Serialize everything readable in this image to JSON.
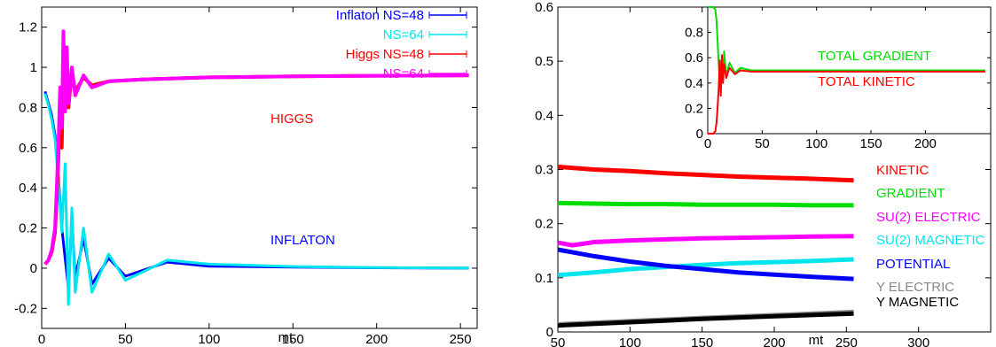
{
  "chart_data": [
    {
      "type": "line",
      "xlabel": "mt",
      "ylabel": "",
      "xlim": [
        0,
        260
      ],
      "ylim": [
        -0.3,
        1.3
      ],
      "xticks": [
        0,
        50,
        100,
        150,
        200,
        250
      ],
      "yticks": [
        -0.2,
        0,
        0.2,
        0.4,
        0.6,
        0.8,
        1,
        1.2
      ],
      "xtick_labels": [
        "0",
        "50",
        "100",
        "150",
        "200",
        "250"
      ],
      "ytick_labels": [
        "-0.2",
        "0",
        "0.2",
        "0.4",
        "0.6",
        "0.8",
        "1",
        "1.2"
      ],
      "legend": {
        "placement": "top-right",
        "groups": [
          {
            "label": "Inflaton",
            "entries": [
              {
                "label": "NS=48",
                "color": "#0000ff"
              },
              {
                "label": "NS=64",
                "color": "#00e5ee"
              }
            ],
            "color": "#0000ff"
          },
          {
            "label": "Higgs",
            "entries": [
              {
                "label": "NS=48",
                "color": "#ff0000"
              },
              {
                "label": "NS=64",
                "color": "#ff00ff"
              }
            ],
            "color": "#ff0000"
          }
        ]
      },
      "annotations": [
        {
          "text": "HIGGS",
          "color": "#ff0000",
          "x": 125,
          "y": 0.86
        },
        {
          "text": "INFLATON",
          "color": "#0000ff",
          "x": 145,
          "y": 0.08
        }
      ],
      "series": [
        {
          "name": "Inflaton NS=48",
          "color": "#0000ff",
          "x": [
            2,
            4,
            6,
            8,
            10,
            12,
            14,
            16,
            18,
            20,
            25,
            30,
            40,
            50,
            75,
            100,
            150,
            200,
            255
          ],
          "y": [
            0.88,
            0.82,
            0.76,
            0.66,
            0.45,
            0.2,
            0.05,
            -0.1,
            0.25,
            -0.05,
            0.15,
            -0.08,
            0.05,
            -0.04,
            0.03,
            0.01,
            0.005,
            0.002,
            0.0
          ]
        },
        {
          "name": "Inflaton NS=64",
          "color": "#00e5ee",
          "x": [
            2,
            4,
            6,
            8,
            10,
            12,
            14,
            16,
            18,
            20,
            25,
            30,
            40,
            50,
            75,
            100,
            150,
            200,
            255
          ],
          "y": [
            0.87,
            0.81,
            0.74,
            0.64,
            0.43,
            0.18,
            0.52,
            -0.18,
            0.3,
            -0.12,
            0.2,
            -0.12,
            0.07,
            -0.06,
            0.04,
            0.02,
            0.008,
            0.003,
            0.0
          ]
        },
        {
          "name": "Higgs NS=48",
          "color": "#ff0000",
          "x": [
            2,
            4,
            6,
            8,
            9,
            10,
            11,
            12,
            13,
            14,
            15,
            16,
            18,
            20,
            25,
            30,
            40,
            60,
            100,
            150,
            200,
            255
          ],
          "y": [
            0.02,
            0.04,
            0.08,
            0.18,
            0.35,
            0.55,
            0.85,
            0.6,
            1.1,
            0.85,
            1.05,
            0.8,
            0.98,
            0.88,
            0.95,
            0.91,
            0.93,
            0.94,
            0.95,
            0.955,
            0.958,
            0.96
          ]
        },
        {
          "name": "Higgs NS=64",
          "color": "#ff00ff",
          "x": [
            2,
            4,
            6,
            8,
            9,
            10,
            11,
            12,
            13,
            14,
            15,
            16,
            18,
            20,
            25,
            30,
            40,
            60,
            100,
            150,
            200,
            255
          ],
          "y": [
            0.02,
            0.04,
            0.09,
            0.2,
            0.4,
            0.62,
            0.9,
            0.7,
            1.18,
            0.78,
            1.1,
            0.82,
            1.0,
            0.86,
            0.96,
            0.9,
            0.93,
            0.94,
            0.95,
            0.955,
            0.958,
            0.96
          ]
        }
      ]
    },
    {
      "type": "line",
      "xlabel": "mt",
      "ylabel": "",
      "xlim": [
        50,
        350
      ],
      "ylim": [
        0,
        0.6
      ],
      "xticks": [
        50,
        100,
        150,
        200,
        250,
        300
      ],
      "yticks": [
        0,
        0.1,
        0.2,
        0.3,
        0.4,
        0.5,
        0.6
      ],
      "xtick_labels": [
        "50",
        "100",
        "150",
        "200",
        "250",
        "300"
      ],
      "ytick_labels": [
        "0",
        "0.1",
        "0.2",
        "0.3",
        "0.4",
        "0.5",
        "0.6"
      ],
      "series": [
        {
          "name": "KINETIC",
          "color": "#ff0000",
          "x": [
            50,
            75,
            100,
            125,
            150,
            175,
            200,
            225,
            255
          ],
          "y": [
            0.305,
            0.3,
            0.297,
            0.293,
            0.29,
            0.287,
            0.285,
            0.283,
            0.28
          ]
        },
        {
          "name": "GRADIENT",
          "color": "#00dd00",
          "x": [
            50,
            75,
            100,
            125,
            150,
            175,
            200,
            225,
            255
          ],
          "y": [
            0.238,
            0.237,
            0.236,
            0.236,
            0.235,
            0.235,
            0.235,
            0.234,
            0.234
          ]
        },
        {
          "name": "SU(2) ELECTRIC",
          "color": "#ff00ff",
          "x": [
            50,
            60,
            75,
            100,
            125,
            150,
            175,
            200,
            225,
            255
          ],
          "y": [
            0.165,
            0.16,
            0.166,
            0.169,
            0.171,
            0.173,
            0.174,
            0.175,
            0.176,
            0.177
          ]
        },
        {
          "name": "SU(2) MAGNETIC",
          "color": "#00e5ee",
          "x": [
            50,
            75,
            100,
            125,
            150,
            175,
            200,
            225,
            255
          ],
          "y": [
            0.105,
            0.11,
            0.116,
            0.12,
            0.124,
            0.127,
            0.129,
            0.131,
            0.134
          ]
        },
        {
          "name": "POTENTIAL",
          "color": "#0000ff",
          "x": [
            50,
            75,
            100,
            125,
            150,
            175,
            200,
            225,
            255
          ],
          "y": [
            0.152,
            0.14,
            0.13,
            0.122,
            0.116,
            0.11,
            0.106,
            0.102,
            0.098
          ]
        },
        {
          "name": "Y ELECTRIC",
          "color": "#888888",
          "x": [
            50,
            100,
            150,
            200,
            255
          ],
          "y": [
            0.014,
            0.02,
            0.026,
            0.031,
            0.037
          ]
        },
        {
          "name": "Y MAGNETIC",
          "color": "#000000",
          "x": [
            50,
            100,
            150,
            200,
            255
          ],
          "y": [
            0.012,
            0.018,
            0.024,
            0.029,
            0.034
          ]
        }
      ],
      "inset": {
        "xlim": [
          0,
          260
        ],
        "ylim": [
          0,
          1.0
        ],
        "xticks": [
          0,
          50,
          100,
          150,
          200
        ],
        "yticks": [
          0,
          0.2,
          0.4,
          0.6,
          0.8
        ],
        "xtick_labels": [
          "0",
          "50",
          "100",
          "150",
          "200"
        ],
        "ytick_labels": [
          "0",
          "0.2",
          "0.4",
          "0.6",
          "0.8"
        ],
        "series": [
          {
            "name": "TOTAL GRADIENT",
            "color": "#00dd00",
            "x": [
              0,
              3,
              5,
              7,
              8,
              9,
              10,
              11,
              12,
              13,
              14,
              15,
              17,
              20,
              25,
              30,
              40,
              60,
              100,
              150,
              200,
              255
            ],
            "y": [
              1.0,
              1.0,
              1.0,
              0.98,
              0.9,
              0.75,
              0.55,
              0.42,
              0.35,
              0.6,
              0.42,
              0.65,
              0.45,
              0.56,
              0.48,
              0.52,
              0.5,
              0.5,
              0.5,
              0.5,
              0.5,
              0.5
            ]
          },
          {
            "name": "TOTAL KINETIC",
            "color": "#ff0000",
            "x": [
              0,
              3,
              5,
              7,
              8,
              9,
              10,
              11,
              12,
              13,
              14,
              15,
              17,
              20,
              25,
              30,
              40,
              60,
              100,
              150,
              200,
              255
            ],
            "y": [
              0.0,
              0.0,
              0.0,
              0.02,
              0.08,
              0.2,
              0.35,
              0.58,
              0.3,
              0.62,
              0.4,
              0.55,
              0.44,
              0.52,
              0.47,
              0.5,
              0.49,
              0.49,
              0.49,
              0.49,
              0.49,
              0.49
            ]
          }
        ]
      },
      "annotations": [
        {
          "text": "TOTAL GRADIENT",
          "color": "#00dd00"
        },
        {
          "text": "TOTAL KINETIC",
          "color": "#ff0000"
        },
        {
          "text": "KINETIC",
          "color": "#ff0000"
        },
        {
          "text": "GRADIENT",
          "color": "#00dd00"
        },
        {
          "text": "SU(2) ELECTRIC",
          "color": "#ff00ff"
        },
        {
          "text": "SU(2) MAGNETIC",
          "color": "#00e5ee"
        },
        {
          "text": "POTENTIAL",
          "color": "#0000ff"
        },
        {
          "text": "Y ELECTRIC",
          "color": "#888888"
        },
        {
          "text": "Y MAGNETIC",
          "color": "#000000"
        }
      ]
    }
  ]
}
